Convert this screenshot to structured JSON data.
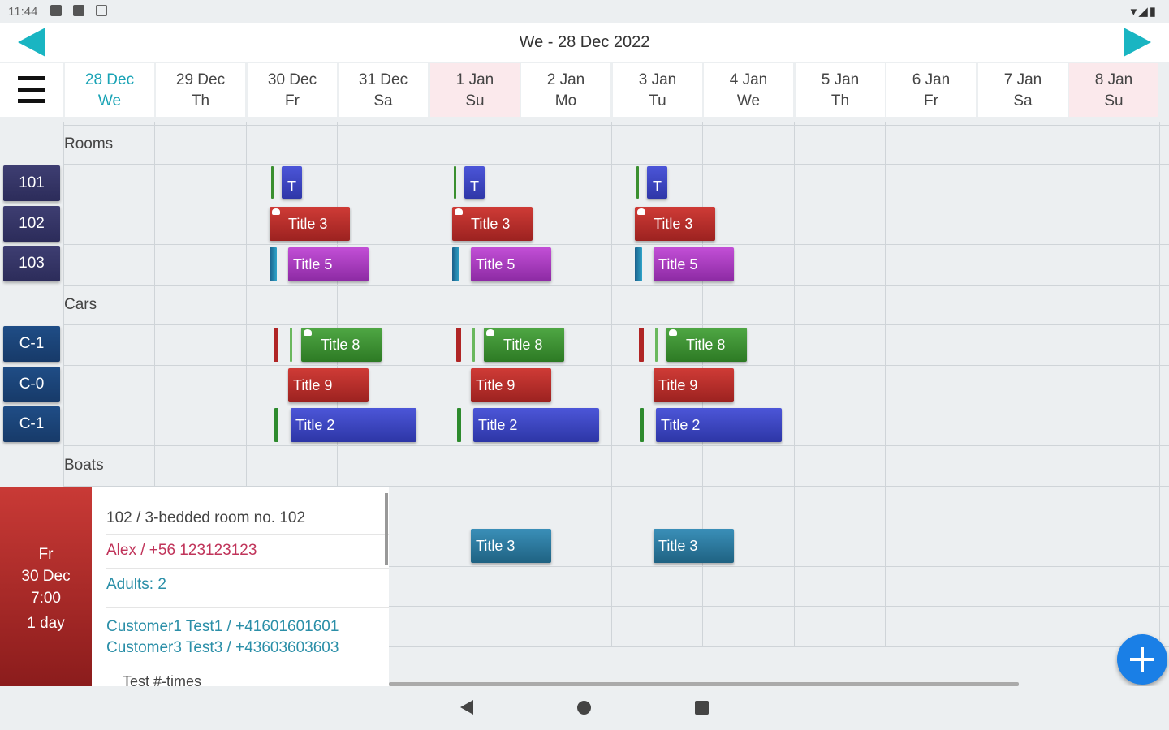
{
  "status": {
    "time": "11:44",
    "right_icons": "▾◢▮"
  },
  "header": {
    "title": "We - 28 Dec 2022"
  },
  "days": [
    {
      "date": "28 Dec",
      "dow": "We"
    },
    {
      "date": "29 Dec",
      "dow": "Th"
    },
    {
      "date": "30 Dec",
      "dow": "Fr"
    },
    {
      "date": "31 Dec",
      "dow": "Sa"
    },
    {
      "date": "1 Jan",
      "dow": "Su"
    },
    {
      "date": "2 Jan",
      "dow": "Mo"
    },
    {
      "date": "3 Jan",
      "dow": "Tu"
    },
    {
      "date": "4 Jan",
      "dow": "We"
    },
    {
      "date": "5 Jan",
      "dow": "Th"
    },
    {
      "date": "6 Jan",
      "dow": "Fr"
    },
    {
      "date": "7 Jan",
      "dow": "Sa"
    },
    {
      "date": "8 Jan",
      "dow": "Su"
    }
  ],
  "sections": {
    "rooms": "Rooms",
    "cars": "Cars",
    "boats": "Boats"
  },
  "resources": {
    "r101": "101",
    "r102": "102",
    "r103": "103",
    "c1a": "C-1",
    "c0": "C-0",
    "c1b": "C-1"
  },
  "events": {
    "t": "T",
    "title3": "Title 3",
    "title5": "Title 5",
    "title8": "Title 8",
    "title9": "Title 9",
    "title2": "Title 2"
  },
  "detail": {
    "day": "Fr",
    "date": "30 Dec",
    "time": "7:00",
    "duration": "1 day",
    "room": "102  /  3-bedded room no. 102",
    "contact": "Alex / +56 123123123",
    "adults": "Adults: 2",
    "customer1": "Customer1 Test1 / +41601601601",
    "customer3": "Customer3 Test3 / +43603603603",
    "note": "Test #-times"
  },
  "colors": {
    "accent": "#19b5c2",
    "room_label": "#3a3a6c",
    "car_label": "#1d4a80",
    "red": "#c0302c",
    "purple": "#b13ac7",
    "green": "#3a8f2f",
    "blue": "#3b46c4",
    "teal": "#2a7ea6"
  },
  "icons": {
    "menu": "hamburger-icon",
    "add": "plus-icon",
    "prev": "arrow-left-icon",
    "next": "arrow-right-icon"
  }
}
